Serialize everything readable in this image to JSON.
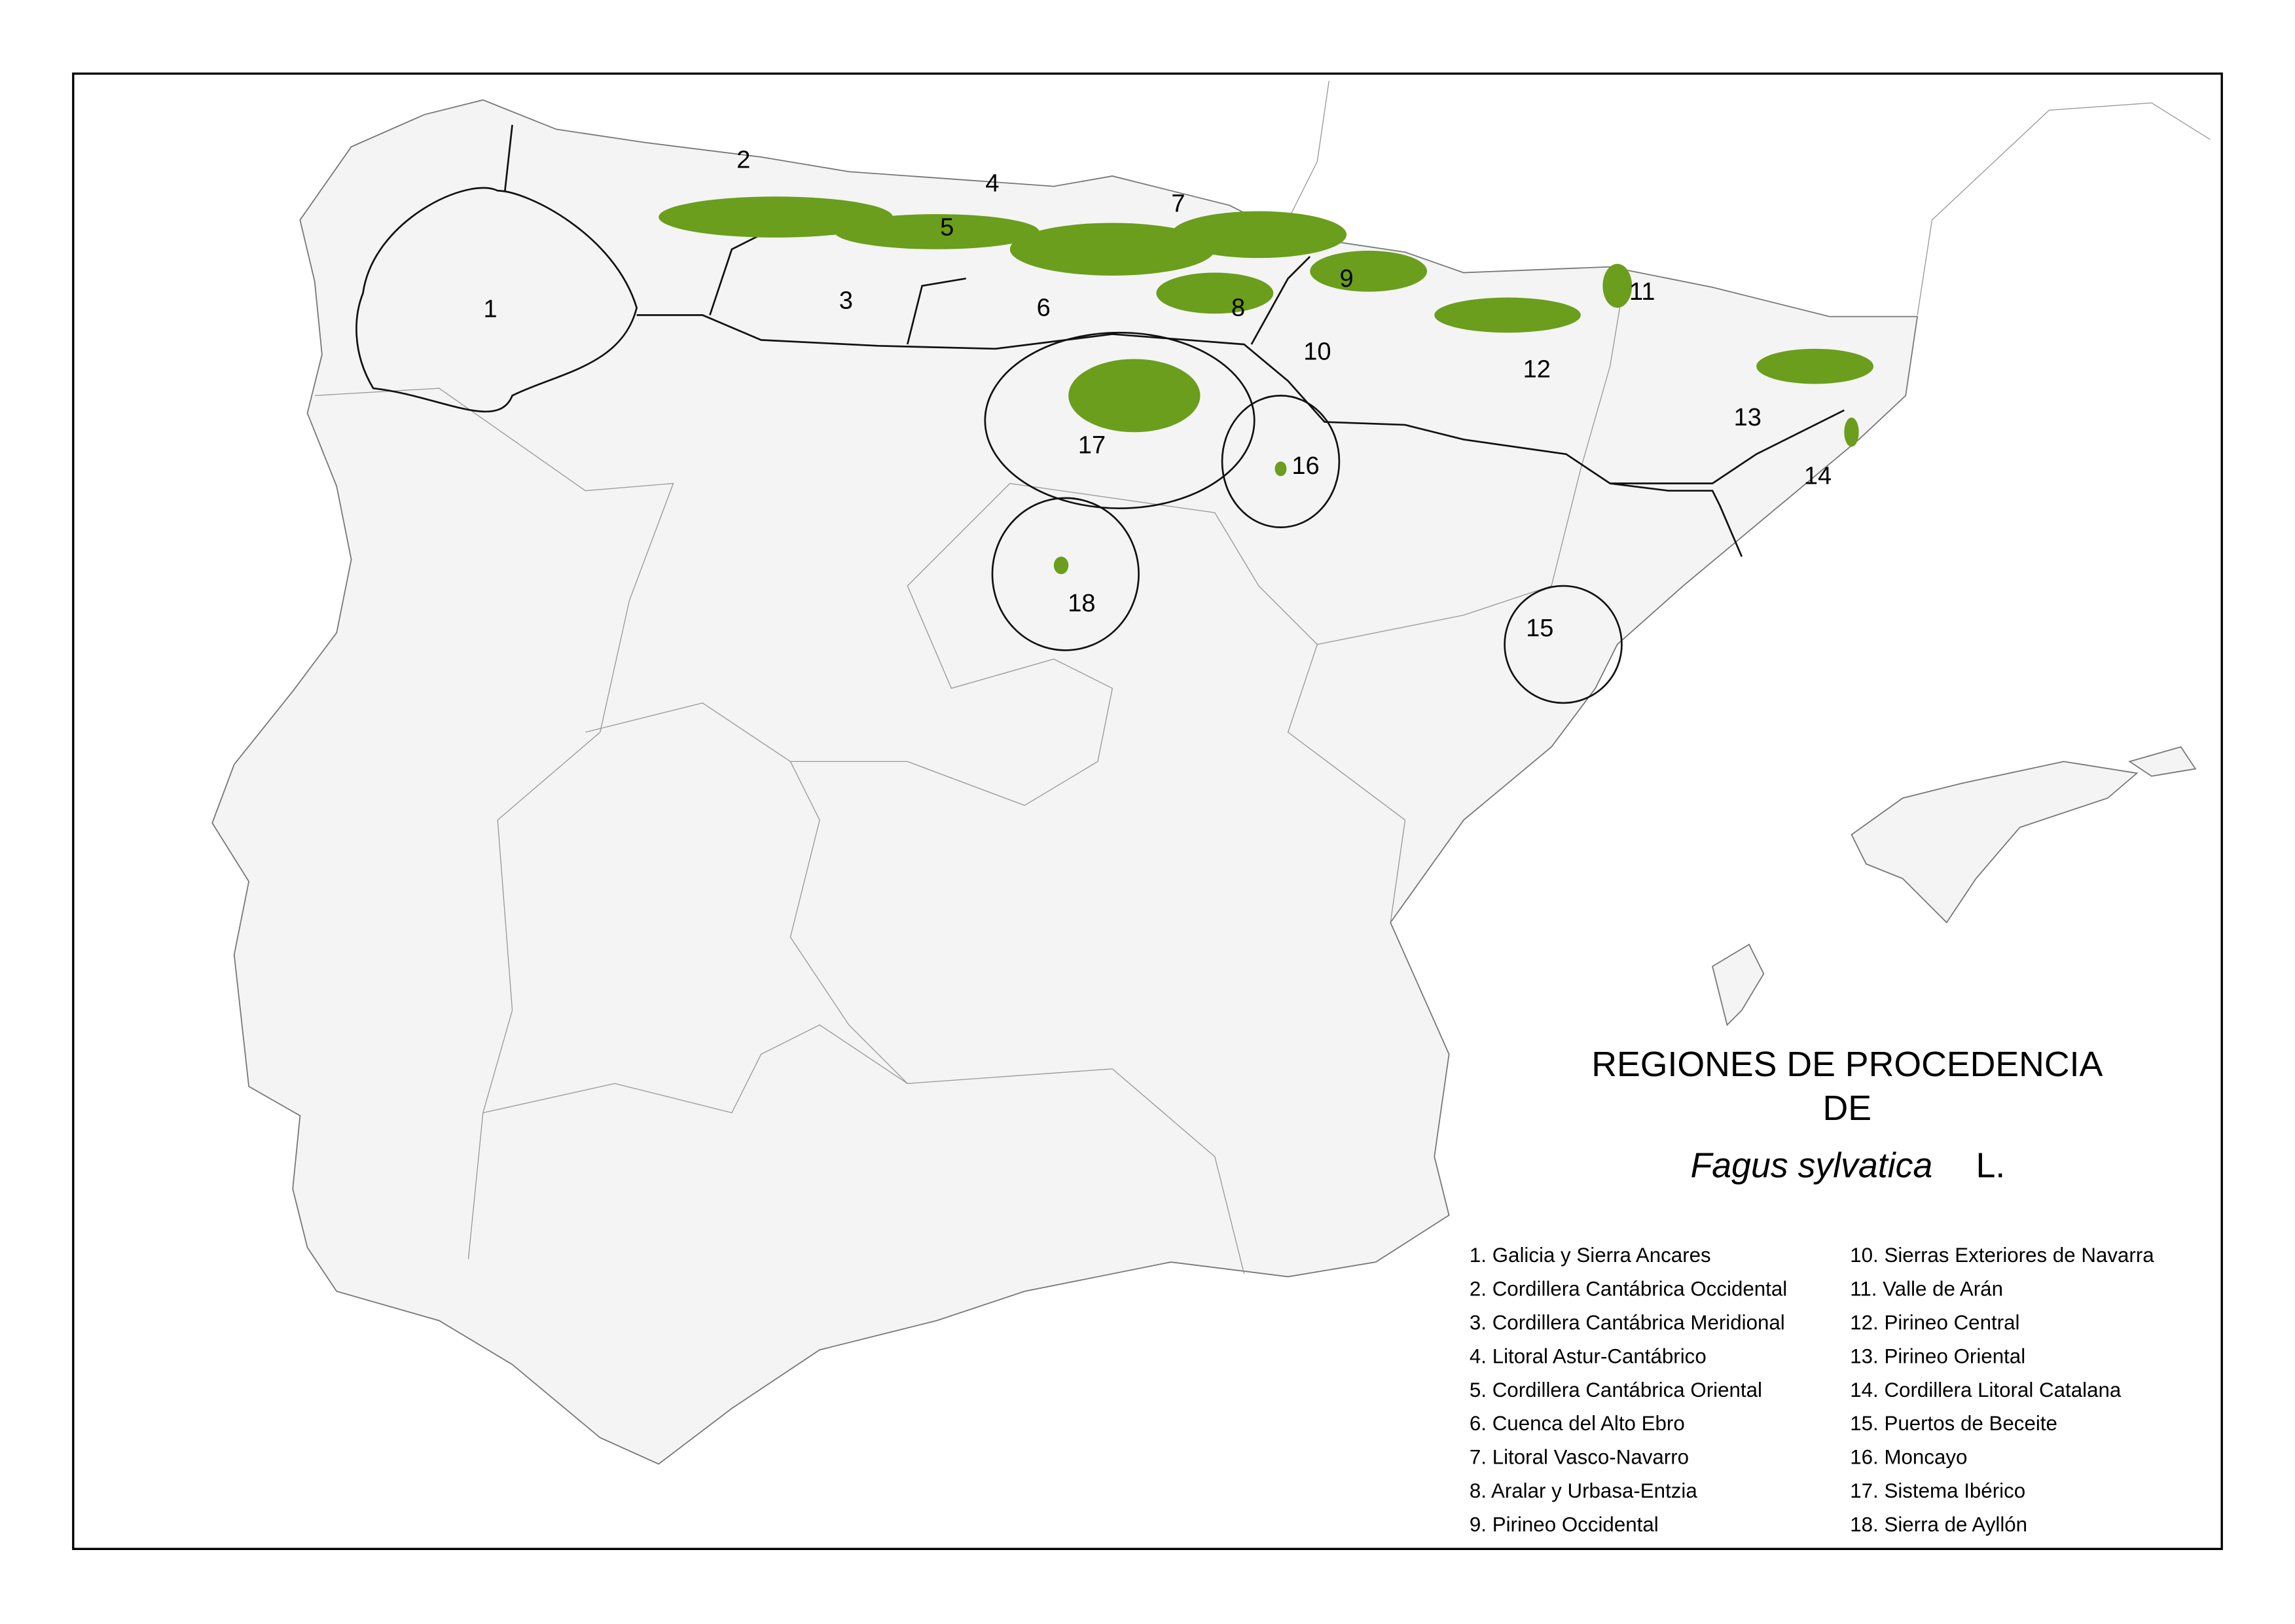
{
  "title": {
    "line1": "REGIONES DE PROCEDENCIA",
    "line2": "DE",
    "species": "Fagus sylvatica",
    "author": "L."
  },
  "map_labels": [
    "1",
    "2",
    "3",
    "4",
    "5",
    "6",
    "7",
    "8",
    "9",
    "10",
    "11",
    "12",
    "13",
    "14",
    "15",
    "16",
    "17",
    "18"
  ],
  "legend": [
    "1. Galicia y Sierra Ancares",
    "2. Cordillera Cantábrica Occidental",
    "3. Cordillera Cantábrica Meridional",
    "4. Litoral Astur-Cantábrico",
    "5. Cordillera Cantábrica Oriental",
    "6. Cuenca del Alto Ebro",
    "7. Litoral Vasco-Navarro",
    "8. Aralar y Urbasa-Entzia",
    "9. Pirineo Occidental",
    "10. Sierras Exteriores de Navarra",
    "11. Valle de Arán",
    "12. Pirineo Central",
    "13. Pirineo Oriental",
    "14. Cordillera Litoral Catalana",
    "15. Puertos de Beceite",
    "16. Moncayo",
    "17. Sistema Ibérico",
    "18. Sierra de Ayllón"
  ]
}
